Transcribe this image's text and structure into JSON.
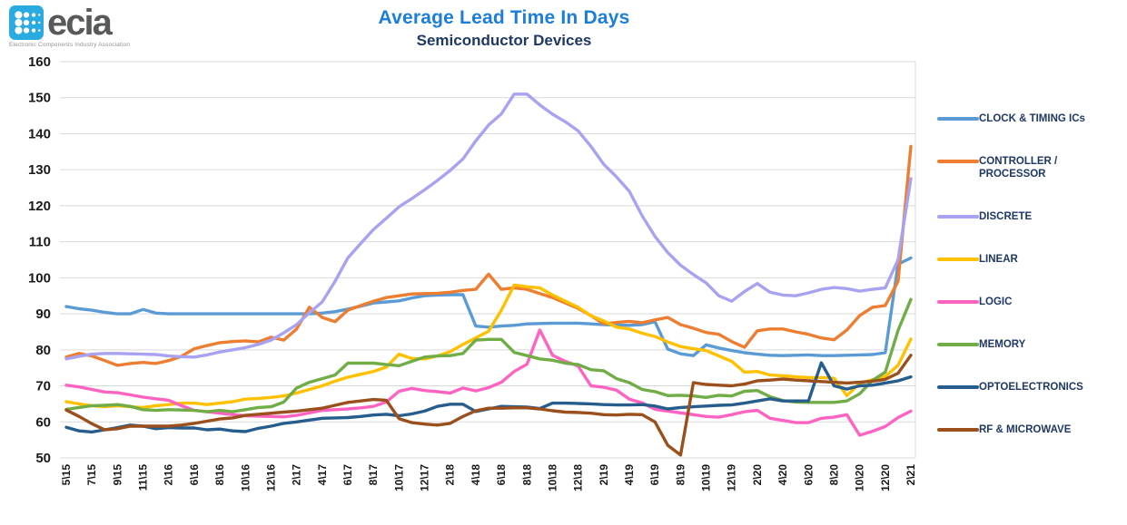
{
  "logo": {
    "text": "ecia",
    "caption": "Electronic Components Industry Association",
    "icon_color": "#29ABE2"
  },
  "chart_data": {
    "type": "line",
    "title": "Average Lead Time In Days",
    "subtitle": "Semiconductor Devices",
    "ylabel": "",
    "xlabel": "",
    "ylim": [
      50,
      160
    ],
    "yticks": [
      50,
      60,
      70,
      80,
      90,
      100,
      110,
      120,
      130,
      140,
      150,
      160
    ],
    "grid": "horizontal",
    "grid_color": "#D9D9D9",
    "legend_position": "right",
    "n_points": 67,
    "x_labels": [
      "5\\15",
      "7\\15",
      "9\\15",
      "11\\15",
      "2\\16",
      "6\\16",
      "8\\16",
      "10\\16",
      "12\\16",
      "2\\17",
      "4\\17",
      "6\\17",
      "8\\17",
      "10\\17",
      "12\\17",
      "2\\18",
      "4\\18",
      "6\\18",
      "8\\18",
      "10\\18",
      "12\\18",
      "2\\19",
      "4\\19",
      "6\\19",
      "8\\19",
      "10\\19",
      "12\\19",
      "2\\20",
      "4\\20",
      "6\\20",
      "8\\20",
      "10\\20",
      "12\\20",
      "2\\21"
    ],
    "series": [
      {
        "name": "CLOCK & TIMING ICs",
        "color": "#5B9BD5",
        "values": [
          92,
          91.4,
          91,
          90.4,
          90,
          90,
          91.2,
          90.2,
          90,
          90,
          90,
          90,
          90,
          90,
          90,
          90,
          90,
          90,
          90,
          90,
          90.2,
          90.6,
          91.3,
          92.1,
          93,
          93.3,
          93.6,
          94.4,
          95,
          95.2,
          95.3,
          95.3,
          86.6,
          86.3,
          86.6,
          86.8,
          87.2,
          87.3,
          87.4,
          87.4,
          87.4,
          87.2,
          87,
          86.9,
          86.8,
          87,
          87.8,
          80.2,
          78.9,
          78.4,
          81.4,
          80.5,
          79.8,
          79.2,
          78.8,
          78.5,
          78.4,
          78.5,
          78.6,
          78.4,
          78.4,
          78.5,
          78.6,
          78.7,
          79.2,
          103.8,
          105.5
        ]
      },
      {
        "name": "CONTROLLER / PROCESSOR",
        "color": "#ED7D31",
        "values": [
          78,
          79,
          78.3,
          77,
          75.7,
          76.2,
          76.5,
          76.2,
          77,
          78.2,
          80.3,
          81.2,
          82,
          82.3,
          82.5,
          82.2,
          83.5,
          82.7,
          85.8,
          91.8,
          89,
          87.8,
          91,
          92.3,
          93.5,
          94.5,
          95,
          95.5,
          95.6,
          95.7,
          96,
          96.5,
          96.8,
          101,
          96.8,
          97.2,
          96.8,
          95.6,
          94.5,
          93,
          91.5,
          89.5,
          87.2,
          87.6,
          87.9,
          87.5,
          88.3,
          89,
          87,
          86,
          84.8,
          84.3,
          82.3,
          80.7,
          85.3,
          85.8,
          85.8,
          85,
          84.3,
          83.3,
          82.8,
          85.5,
          89.5,
          91.8,
          92.3,
          99,
          136.5
        ]
      },
      {
        "name": "DISCRETE",
        "color": "#A8A2F2",
        "values": [
          77.5,
          78.2,
          78.8,
          79,
          79,
          78.9,
          78.8,
          78.7,
          78.3,
          78.1,
          78,
          78.6,
          79.4,
          80,
          80.6,
          81.5,
          82.7,
          84.7,
          87,
          90.3,
          93.3,
          99,
          105.5,
          109.5,
          113.4,
          116.5,
          119.7,
          122,
          124.4,
          127,
          129.8,
          133,
          138,
          142.4,
          145.5,
          151,
          151,
          148,
          145.4,
          143.3,
          140.8,
          136.5,
          131.5,
          128,
          124,
          117.2,
          111.5,
          107,
          103.5,
          100.9,
          98.6,
          95,
          93.5,
          96.2,
          98.4,
          96,
          95.2,
          95,
          95.8,
          96.8,
          97.3,
          97,
          96.3,
          96.8,
          97.2,
          105,
          127.5
        ]
      },
      {
        "name": "LINEAR",
        "color": "#FFC000",
        "values": [
          65.6,
          65,
          64.5,
          64.2,
          64.5,
          64.2,
          64,
          64.5,
          64.8,
          65.2,
          65.2,
          64.8,
          65.2,
          65.6,
          66.3,
          66.5,
          66.8,
          67.2,
          68,
          69,
          70,
          71.3,
          72.4,
          73.2,
          74,
          75.2,
          78.8,
          77.6,
          77.5,
          78.3,
          79.5,
          81.5,
          83.3,
          85.2,
          91,
          98,
          97.5,
          97.2,
          95.2,
          93.5,
          91.8,
          89.5,
          88,
          86.3,
          85.8,
          84.6,
          83.7,
          82.2,
          80.9,
          80.3,
          79.8,
          78.3,
          76.8,
          73.8,
          74,
          73,
          72.8,
          72.5,
          72.3,
          72.3,
          72.1,
          67.3,
          70.7,
          71.7,
          72.6,
          75.7,
          83
        ]
      },
      {
        "name": "LOGIC",
        "color": "#FF63C1",
        "values": [
          70.2,
          69.7,
          69,
          68.3,
          68.1,
          67.5,
          66.9,
          66.4,
          66,
          64.5,
          63.2,
          62.8,
          62.4,
          62,
          61.7,
          61.6,
          61.5,
          61.4,
          61.8,
          62.5,
          63.2,
          63.4,
          63.6,
          63.9,
          64.3,
          65.5,
          68.5,
          69.3,
          68.7,
          68.4,
          68,
          69.4,
          68.6,
          69.5,
          71,
          74,
          76,
          85.5,
          78.5,
          76.8,
          75.5,
          70,
          69.6,
          68.8,
          66.3,
          65.3,
          63.5,
          63,
          62.5,
          62,
          61.5,
          61.3,
          62,
          62.8,
          63.2,
          61,
          60.4,
          59.8,
          59.8,
          61,
          61.3,
          62,
          56.3,
          57.4,
          58.7,
          61.2,
          63
        ]
      },
      {
        "name": "MEMORY",
        "color": "#70AD47",
        "values": [
          63.5,
          64,
          64.5,
          64.6,
          64.8,
          64.3,
          63.4,
          63.2,
          63.4,
          63.3,
          63.2,
          62.8,
          63.2,
          62.8,
          63.4,
          64,
          64.2,
          65.5,
          69.4,
          71,
          72,
          73,
          76.3,
          76.3,
          76.3,
          75.9,
          75.6,
          76.8,
          78,
          78.3,
          78.4,
          79,
          82.7,
          82.9,
          82.9,
          79.3,
          78.4,
          77.5,
          77.1,
          76.3,
          75.9,
          74.5,
          74.2,
          72,
          70.9,
          69,
          68.4,
          67.3,
          67.4,
          67.2,
          66.8,
          67.4,
          67.2,
          68.5,
          68.7,
          67,
          65.9,
          65.5,
          65.4,
          65.4,
          65.4,
          65.8,
          67.8,
          71.5,
          73.8,
          85.4,
          94
        ]
      },
      {
        "name": "OPTOELECTRONICS",
        "color": "#275D8D",
        "values": [
          58.5,
          57.5,
          57.2,
          57.8,
          58.4,
          59.1,
          58.8,
          58.1,
          58.4,
          58.3,
          58.3,
          57.8,
          58,
          57.5,
          57.3,
          58.2,
          58.8,
          59.6,
          60,
          60.5,
          61,
          61.1,
          61.2,
          61.5,
          61.9,
          62.1,
          61.7,
          62.2,
          63,
          64.3,
          64.9,
          64.9,
          62.9,
          63.6,
          64.3,
          64.2,
          64.1,
          63.7,
          65.2,
          65.2,
          65.1,
          65,
          64.8,
          64.7,
          64.7,
          64.8,
          64.4,
          63.6,
          64,
          64.2,
          64.4,
          64.6,
          64.7,
          65.2,
          65.8,
          66.4,
          65.8,
          65.8,
          65.8,
          76.4,
          70,
          69.1,
          70,
          70.2,
          70.8,
          71.4,
          72.5
        ]
      },
      {
        "name": "RF & MICROWAVE",
        "color": "#9A4F1C",
        "values": [
          63.3,
          61.5,
          59.5,
          57.8,
          58.1,
          58.8,
          58.8,
          58.8,
          58.8,
          59.1,
          59.6,
          60.2,
          60.8,
          61.1,
          61.8,
          62.1,
          62.4,
          62.7,
          63,
          63.4,
          63.8,
          64.6,
          65.4,
          65.8,
          66.2,
          66,
          60.9,
          59.8,
          59.4,
          59.1,
          59.6,
          61.5,
          63.1,
          63.8,
          63.8,
          63.9,
          63.9,
          63.6,
          63.1,
          62.7,
          62.6,
          62.4,
          62,
          61.9,
          62.1,
          62,
          60,
          53.5,
          50.8,
          70.9,
          70.4,
          70.2,
          70,
          70.5,
          71.4,
          71.6,
          71.9,
          71.6,
          71.4,
          71.2,
          71,
          70.8,
          71,
          71.3,
          71.8,
          73.5,
          78.5
        ]
      }
    ]
  }
}
